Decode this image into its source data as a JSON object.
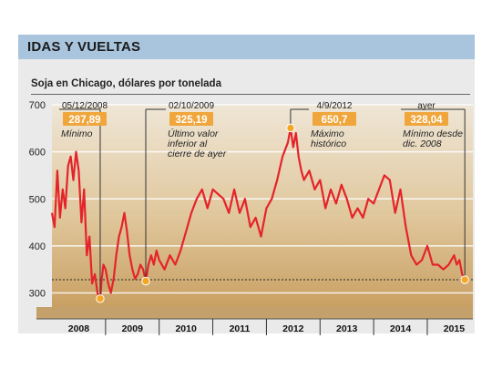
{
  "header": {
    "title": "IDAS Y VUELTAS",
    "subtitle": "Soja en Chicago, dólares por tonelada"
  },
  "colors": {
    "line": "#e4242a",
    "highlight": "#f5a623",
    "label_box": "#f0a63c",
    "reference_line": "#222222"
  },
  "chart_data": {
    "type": "line",
    "title": "Soja en Chicago, dólares por tonelada",
    "xlabel": "",
    "ylabel": "",
    "xlim": [
      2008.0,
      2015.85
    ],
    "ylim": [
      270,
      700
    ],
    "yticks": [
      300,
      400,
      500,
      600,
      700
    ],
    "xticks_labels": [
      "2008",
      "2009",
      "2010",
      "2011",
      "2012",
      "2013",
      "2014",
      "2015"
    ],
    "grid": true,
    "reference_line": 328.04,
    "series": [
      {
        "x": [
          2008.0,
          2008.05,
          2008.1,
          2008.15,
          2008.2,
          2008.25,
          2008.3,
          2008.35,
          2008.4,
          2008.45,
          2008.5,
          2008.55,
          2008.6,
          2008.65,
          2008.7,
          2008.75,
          2008.8,
          2008.85,
          2008.9,
          2008.93,
          2008.96,
          2009.0,
          2009.05,
          2009.1,
          2009.15,
          2009.2,
          2009.25,
          2009.3,
          2009.35,
          2009.4,
          2009.45,
          2009.5,
          2009.55,
          2009.6,
          2009.65,
          2009.7,
          2009.75,
          2009.8,
          2009.85,
          2009.9,
          2009.95,
          2010.0,
          2010.1,
          2010.2,
          2010.3,
          2010.4,
          2010.5,
          2010.6,
          2010.7,
          2010.8,
          2010.9,
          2011.0,
          2011.1,
          2011.2,
          2011.3,
          2011.4,
          2011.5,
          2011.6,
          2011.7,
          2011.8,
          2011.9,
          2012.0,
          2012.1,
          2012.2,
          2012.3,
          2012.4,
          2012.45,
          2012.5,
          2012.55,
          2012.6,
          2012.65,
          2012.7,
          2012.8,
          2012.9,
          2013.0,
          2013.1,
          2013.2,
          2013.3,
          2013.4,
          2013.5,
          2013.6,
          2013.7,
          2013.8,
          2013.9,
          2014.0,
          2014.1,
          2014.2,
          2014.3,
          2014.4,
          2014.5,
          2014.6,
          2014.7,
          2014.8,
          2014.9,
          2015.0,
          2015.1,
          2015.2,
          2015.3,
          2015.4,
          2015.5,
          2015.55,
          2015.6,
          2015.65,
          2015.7
        ],
        "y": [
          470,
          440,
          560,
          460,
          520,
          480,
          570,
          590,
          540,
          600,
          560,
          450,
          520,
          380,
          420,
          320,
          340,
          300,
          287.89,
          330,
          360,
          350,
          320,
          300,
          330,
          380,
          420,
          440,
          470,
          430,
          380,
          350,
          330,
          340,
          360,
          350,
          325.19,
          360,
          380,
          360,
          390,
          370,
          350,
          380,
          360,
          390,
          430,
          470,
          500,
          520,
          480,
          520,
          510,
          500,
          470,
          520,
          470,
          500,
          440,
          460,
          420,
          480,
          500,
          540,
          590,
          620,
          650.7,
          610,
          640,
          590,
          560,
          540,
          560,
          520,
          540,
          480,
          520,
          490,
          530,
          500,
          460,
          480,
          460,
          500,
          490,
          520,
          550,
          540,
          470,
          520,
          440,
          380,
          360,
          370,
          400,
          360,
          360,
          350,
          360,
          380,
          360,
          370,
          340,
          328.04
        ]
      }
    ],
    "annotations": [
      {
        "date": "05/12/2008",
        "value": "287,89",
        "text": "Mínimo",
        "x": 2008.9,
        "y": 287.89
      },
      {
        "date": "02/10/2009",
        "value": "325,19",
        "text": "Último valor inferior al cierre de ayer",
        "x": 2009.75,
        "y": 325.19
      },
      {
        "date": "4/9/2012",
        "value": "650,7",
        "text": "Máximo histórico",
        "x": 2012.45,
        "y": 650.7
      },
      {
        "date": "ayer",
        "value": "328,04",
        "text": "Mínimo desde dic. 2008",
        "x": 2015.7,
        "y": 328.04
      }
    ]
  }
}
